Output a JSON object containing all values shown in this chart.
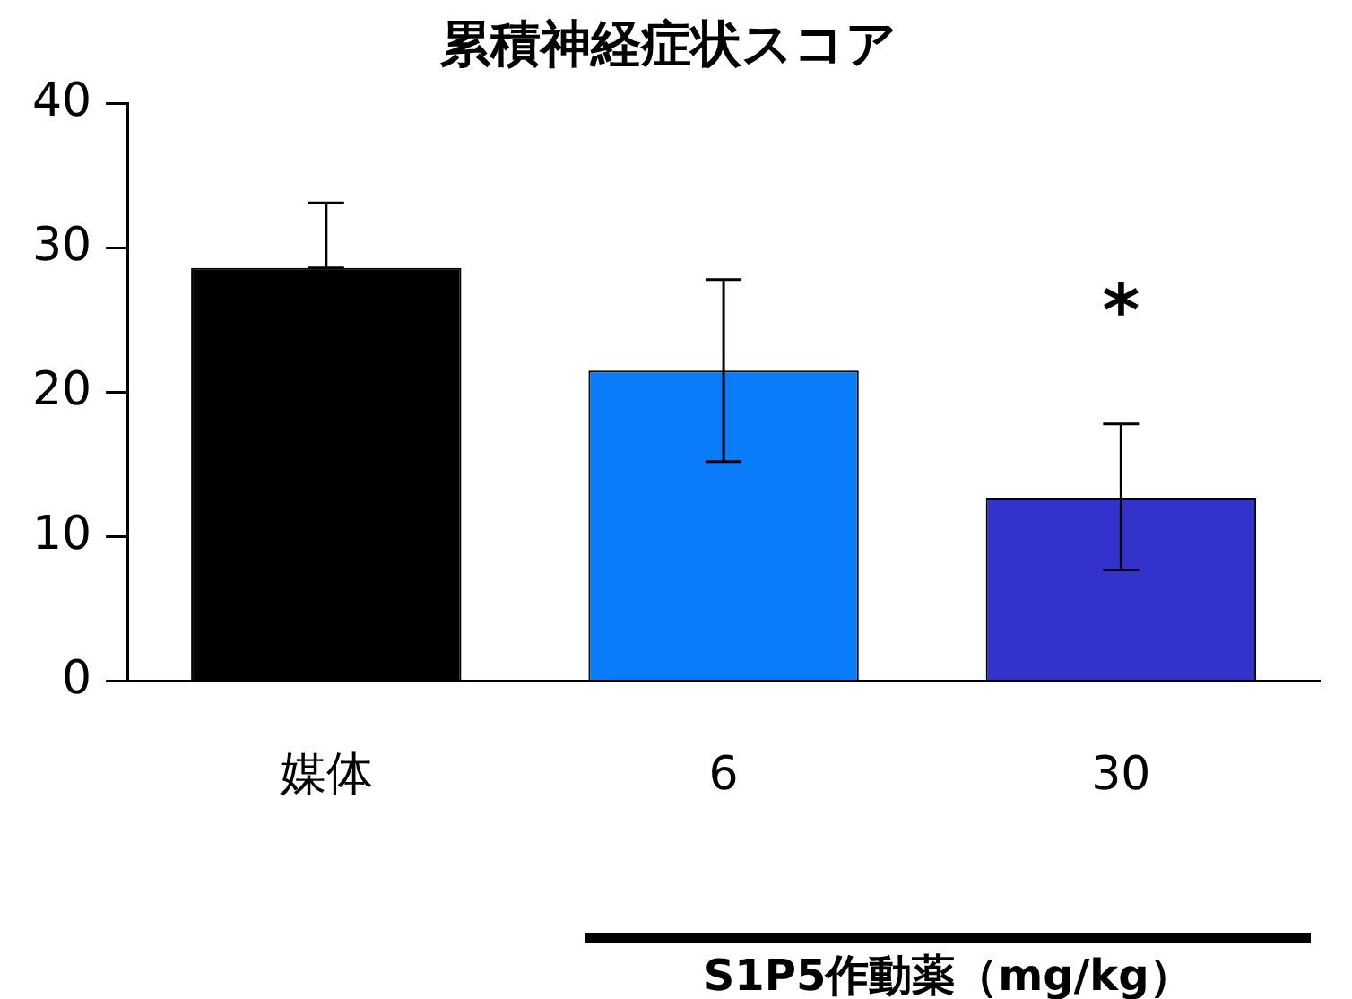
{
  "chart_data": {
    "type": "bar",
    "title": "累積神経症状スコア",
    "xlabel": "S1P5作動薬（mg/kg）",
    "categories": [
      "媒体",
      "6",
      "30"
    ],
    "values": [
      28.6,
      21.5,
      12.7
    ],
    "colors": [
      "#000000",
      "#0a7cfa",
      "#3333cc"
    ],
    "errors": [
      [
        28.6,
        33.1
      ],
      [
        15.2,
        27.8
      ],
      [
        7.7,
        17.8
      ]
    ],
    "ylim": [
      0,
      40
    ],
    "yticks": [
      0,
      10,
      20,
      30,
      40
    ],
    "grid": false,
    "legend": false,
    "annotations": [
      "*"
    ]
  }
}
